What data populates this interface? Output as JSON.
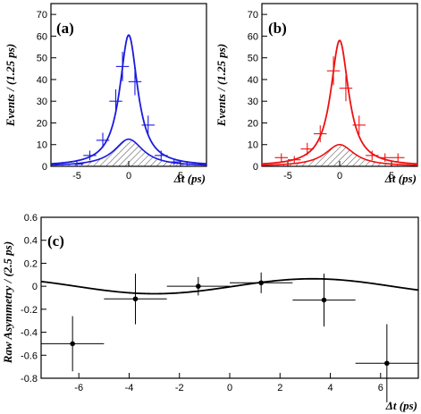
{
  "chart_data": [
    {
      "type": "line",
      "panel_label": "(a)",
      "xlabel": "Δt (ps)",
      "ylabel": "Events / (1.25 ps)",
      "xlim": [
        -7.5,
        7.5
      ],
      "ylim": [
        0,
        75
      ],
      "x_ticks": [
        -5,
        0,
        5
      ],
      "y_ticks": [
        0,
        10,
        20,
        30,
        40,
        50,
        60,
        70
      ],
      "color": "#1a1adf",
      "curves": {
        "total": {
          "peak": 60.5,
          "gamma": 1.05
        },
        "background": {
          "peak": 12.5,
          "gamma": 1.7
        }
      },
      "points": [
        {
          "x": -5.0,
          "y": 1.0
        },
        {
          "x": -3.75,
          "y": 5.0
        },
        {
          "x": -2.5,
          "y": 12.0
        },
        {
          "x": -1.25,
          "y": 30.0
        },
        {
          "x": -0.6,
          "y": 46.0
        },
        {
          "x": 0.6,
          "y": 39.0
        },
        {
          "x": 1.875,
          "y": 19.0
        },
        {
          "x": 3.125,
          "y": 5.0
        },
        {
          "x": 4.375,
          "y": 2.0
        },
        {
          "x": 5.625,
          "y": 1.0
        }
      ]
    },
    {
      "type": "line",
      "panel_label": "(b)",
      "xlabel": "Δt (ps)",
      "ylabel": "Events / (1.25 ps)",
      "xlim": [
        -7.5,
        7.5
      ],
      "ylim": [
        0,
        75
      ],
      "x_ticks": [
        -5,
        0,
        5
      ],
      "y_ticks": [
        0,
        10,
        20,
        30,
        40,
        50,
        60,
        70
      ],
      "color": "#ee1111",
      "curves": {
        "total": {
          "peak": 58.0,
          "gamma": 1.05
        },
        "background": {
          "peak": 10.0,
          "gamma": 1.7
        }
      },
      "points": [
        {
          "x": -5.625,
          "y": 4.0
        },
        {
          "x": -4.375,
          "y": 3.0
        },
        {
          "x": -3.125,
          "y": 8.0
        },
        {
          "x": -1.875,
          "y": 15.0
        },
        {
          "x": -0.6,
          "y": 44.0
        },
        {
          "x": 0.6,
          "y": 36.0
        },
        {
          "x": 1.875,
          "y": 19.0
        },
        {
          "x": 3.125,
          "y": 5.0
        },
        {
          "x": 4.375,
          "y": 4.0
        },
        {
          "x": 5.625,
          "y": 4.0
        }
      ]
    },
    {
      "type": "scatter",
      "panel_label": "(c)",
      "xlabel": "Δt (ps)",
      "ylabel": "Raw Asymmetry / (2.5 ps)",
      "xlim": [
        -7.5,
        7.5
      ],
      "ylim": [
        -0.8,
        0.6
      ],
      "x_ticks": [
        -6,
        -4,
        -2,
        0,
        2,
        4,
        6
      ],
      "y_ticks": [
        -0.8,
        -0.6,
        -0.4,
        -0.2,
        0,
        0.2,
        0.4,
        0.6
      ],
      "color": "#000000",
      "curve": {
        "amplitude": 0.065,
        "frequency": 0.5,
        "phase": 1.5
      },
      "points": [
        {
          "x": -6.25,
          "xerr": 1.25,
          "y": -0.5,
          "yerr": 0.24
        },
        {
          "x": -3.75,
          "xerr": 1.25,
          "y": -0.11,
          "yerr": 0.22
        },
        {
          "x": -1.25,
          "xerr": 1.25,
          "y": 0.0,
          "yerr": 0.08
        },
        {
          "x": 1.25,
          "xerr": 1.25,
          "y": 0.03,
          "yerr": 0.09
        },
        {
          "x": 3.75,
          "xerr": 1.25,
          "y": -0.12,
          "yerr": 0.23
        },
        {
          "x": 6.25,
          "xerr": 1.25,
          "y": -0.67,
          "yerr": 0.34
        }
      ]
    }
  ]
}
